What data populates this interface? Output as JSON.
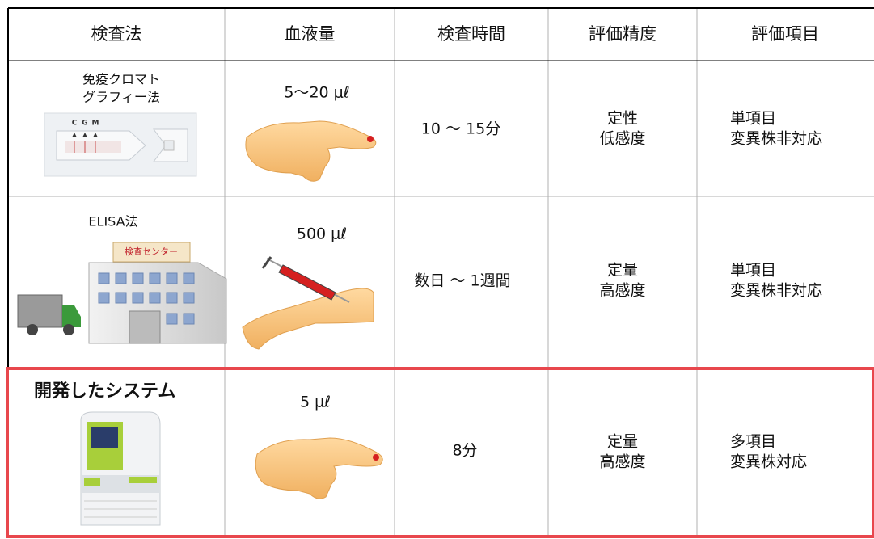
{
  "table": {
    "headers": [
      "検査法",
      "血液量",
      "検査時間",
      "評価精度",
      "評価項目"
    ],
    "rows": [
      {
        "method": [
          "免疫クロマト",
          "グラフィー法"
        ],
        "strip_labels": [
          "C",
          "G",
          "M"
        ],
        "volume": "5～20 μℓ",
        "time": "10 ～ 15分",
        "accuracy": [
          "定性",
          "低感度"
        ],
        "items": [
          "単項目",
          "変異株非対応"
        ]
      },
      {
        "method": [
          "ELISA法"
        ],
        "sign": "検査センター",
        "volume": "500 μℓ",
        "time": "数日 ～ 1週間",
        "accuracy": [
          "定量",
          "高感度"
        ],
        "items": [
          "単項目",
          "変異株非対応"
        ]
      },
      {
        "method": [
          "開発したシステム"
        ],
        "volume": "5 μℓ",
        "time": "8分",
        "accuracy": [
          "定量",
          "高感度"
        ],
        "items": [
          "多項目",
          "変異株対応"
        ]
      }
    ]
  }
}
